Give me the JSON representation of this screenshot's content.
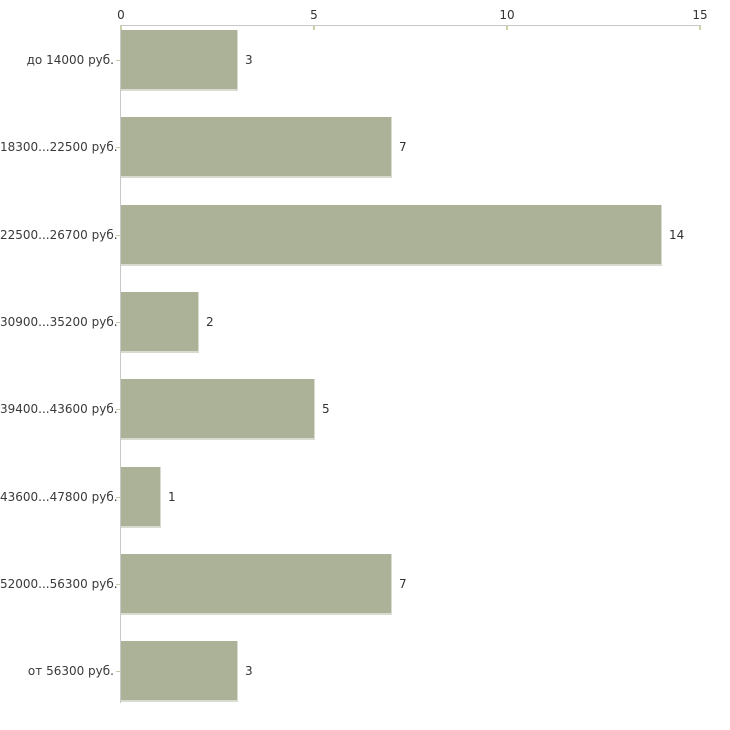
{
  "chart_data": {
    "type": "bar",
    "orientation": "horizontal",
    "categories": [
      "до 14000 руб.",
      "18300...22500 руб.",
      "22500...26700 руб.",
      "30900...35200 руб.",
      "39400...43600 руб.",
      "43600...47800 руб.",
      "52000...56300 руб.",
      "от 56300 руб."
    ],
    "values": [
      3,
      7,
      14,
      2,
      5,
      1,
      7,
      3
    ],
    "value_labels": [
      "3",
      "7",
      "14",
      "2",
      "5",
      "1",
      "7",
      "3"
    ],
    "x_ticks": [
      0,
      5,
      10,
      15
    ],
    "x_tick_labels": [
      "0",
      "5",
      "10",
      "15"
    ],
    "xlim": [
      0,
      15
    ],
    "title": "",
    "xlabel": "",
    "ylabel": "",
    "grid": false,
    "legend": false,
    "colors": {
      "bar_fill": "#abb297",
      "bar_edge": "#d8dbcf",
      "axis_line": "#c8c8c8",
      "tick_mark": "#cdd1a8",
      "text": "#3a3a3a",
      "background": "#ffffff"
    }
  }
}
